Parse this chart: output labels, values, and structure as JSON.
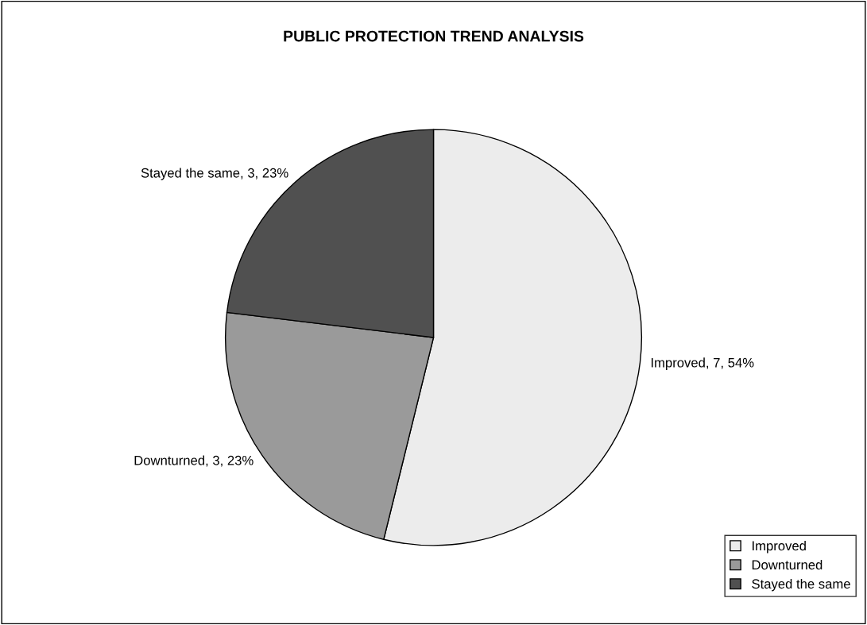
{
  "chart_data": {
    "type": "pie",
    "title": "PUBLIC PROTECTION TREND ANALYSIS",
    "categories": [
      "Improved",
      "Downturned",
      "Stayed the same"
    ],
    "values": [
      7,
      3,
      3
    ],
    "colors": [
      "#ececec",
      "#9a9a9a",
      "#505050"
    ],
    "value_labels": [
      "Improved, 7, 54%",
      "Downturned, 3, 23%",
      "Stayed the same, 3, 23%"
    ],
    "legend": "bottom right"
  }
}
